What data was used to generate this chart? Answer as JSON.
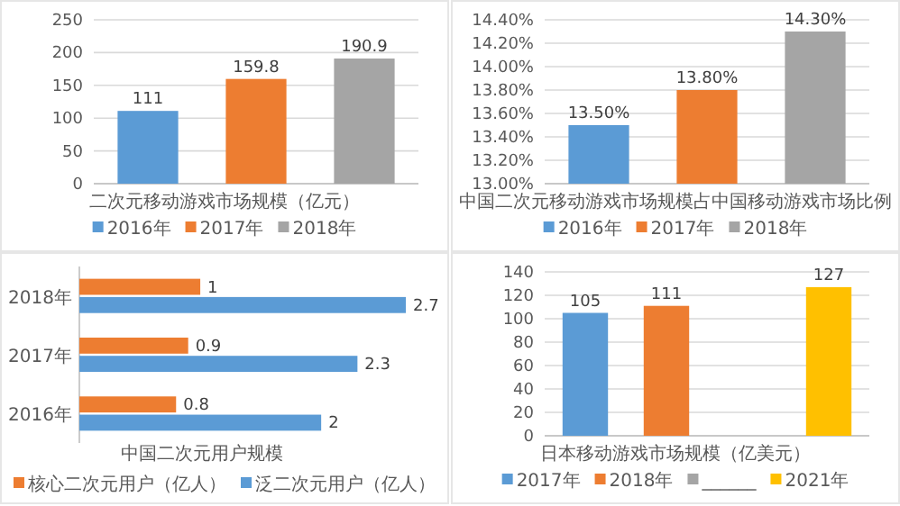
{
  "chart_data": [
    {
      "type": "bar",
      "categories": [
        null,
        null,
        null
      ],
      "xlabel": "二次元移动游戏市场规模（亿元）",
      "ylim": [
        0,
        250
      ],
      "yticks": [
        0,
        50,
        100,
        150,
        200,
        250
      ],
      "grid": "y",
      "legend": "bottom",
      "tick_labels": "y",
      "data_labels": true,
      "series": [
        {
          "name": "2016年",
          "color": "#5b9bd5",
          "values": [
            111,
            null,
            null
          ]
        },
        {
          "name": "2017年",
          "color": "#ed7d31",
          "values": [
            null,
            159.8,
            null
          ]
        },
        {
          "name": "2018年",
          "color": "#a5a5a5",
          "values": [
            null,
            null,
            190.9
          ]
        }
      ]
    },
    {
      "type": "bar",
      "categories": [
        null,
        null,
        null
      ],
      "xlabel": "中国二次元移动游戏市场规模占中国移动游戏市场比例",
      "ylim": [
        13,
        14.4
      ],
      "yticks": [
        {
          "value": 13,
          "label": "13.00%"
        },
        {
          "value": 13.2,
          "label": "13.20%"
        },
        {
          "value": 13.4,
          "label": "13.40%"
        },
        {
          "value": 13.6,
          "label": "13.60%"
        },
        {
          "value": 13.8,
          "label": "13.80%"
        },
        {
          "value": 14,
          "label": "14.00%"
        },
        {
          "value": 14.2,
          "label": "14.20%"
        },
        {
          "value": 14.4,
          "label": "14.40%"
        }
      ],
      "grid": "y",
      "legend": "bottom",
      "tick_labels": "y",
      "series": [
        {
          "name": "2016年",
          "color": "#5b9bd5",
          "values": [
            13.5,
            null,
            null
          ],
          "value_labels": [
            "13.50%",
            null,
            null
          ]
        },
        {
          "name": "2017年",
          "color": "#ed7d31",
          "values": [
            null,
            13.8,
            null
          ],
          "value_labels": [
            null,
            "13.80%",
            null
          ]
        },
        {
          "name": "2018年",
          "color": "#a5a5a5",
          "values": [
            null,
            null,
            14.3
          ],
          "value_labels": [
            null,
            null,
            "14.30%"
          ]
        }
      ]
    },
    {
      "type": "bar",
      "orientation": "horizontal",
      "categories": [
        "2018年",
        "2017年",
        "2016年"
      ],
      "xlabel": "中国二次元用户规模",
      "tick_labels": "y",
      "legend": "bottom",
      "data_labels": true,
      "series": [
        {
          "name": "核心二次元用户（亿人）",
          "color": "#ed7d31",
          "values": [
            1,
            0.9,
            0.8
          ]
        },
        {
          "name": "泛二次元用户（亿人）",
          "color": "#5b9bd5",
          "values": [
            2.7,
            2.3,
            2
          ]
        }
      ]
    },
    {
      "type": "bar",
      "categories": [
        null,
        null,
        null,
        null
      ],
      "xlabel": "日本移动游戏市场规模（亿美元）",
      "ylim": [
        0,
        140
      ],
      "yticks": [
        0,
        20,
        40,
        60,
        80,
        100,
        120,
        140
      ],
      "grid": "y",
      "legend": "bottom",
      "tick_labels": "y",
      "data_labels": true,
      "series": [
        {
          "name": "2017年",
          "color": "#5b9bd5",
          "values": [
            105,
            null,
            null,
            null
          ]
        },
        {
          "name": "2018年",
          "color": "#ed7d31",
          "values": [
            null,
            111,
            null,
            null
          ]
        },
        {
          "name": "______",
          "color": "#a5a5a5",
          "values": [
            null,
            null,
            null,
            null
          ]
        },
        {
          "name": "2021年",
          "color": "#ffc000",
          "values": [
            null,
            null,
            null,
            127
          ]
        }
      ]
    }
  ]
}
